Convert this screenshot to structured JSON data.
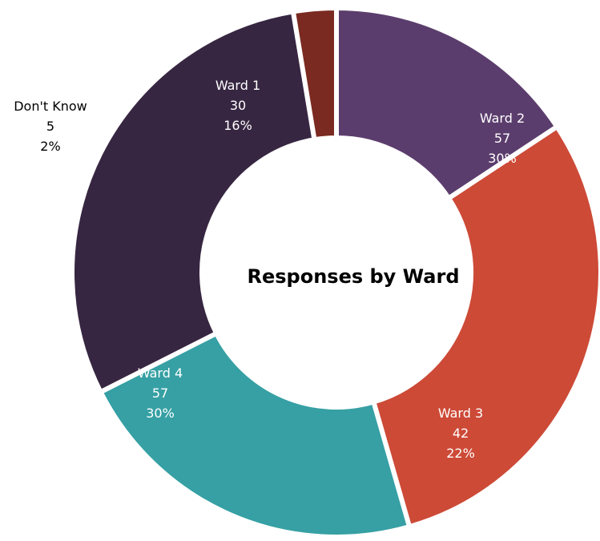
{
  "chart_data": {
    "type": "pie",
    "variant": "donut",
    "title": "Responses by Ward",
    "slices": [
      {
        "label": "Ward 1",
        "value": 30,
        "percent": "16%",
        "color": "#5b3d6d",
        "text_color": "#ffffff"
      },
      {
        "label": "Ward 2",
        "value": 57,
        "percent": "30%",
        "color": "#cd4a37",
        "text_color": "#ffffff"
      },
      {
        "label": "Ward 3",
        "value": 42,
        "percent": "22%",
        "color": "#36a0a4",
        "text_color": "#ffffff"
      },
      {
        "label": "Ward 4",
        "value": 57,
        "percent": "30%",
        "color": "#372641",
        "text_color": "#ffffff"
      },
      {
        "label": "Don't Know",
        "value": 5,
        "percent": "2%",
        "color": "#7b2a21",
        "text_color": "#000000"
      }
    ],
    "legend": "none",
    "data_labels": "label, value, percent"
  }
}
